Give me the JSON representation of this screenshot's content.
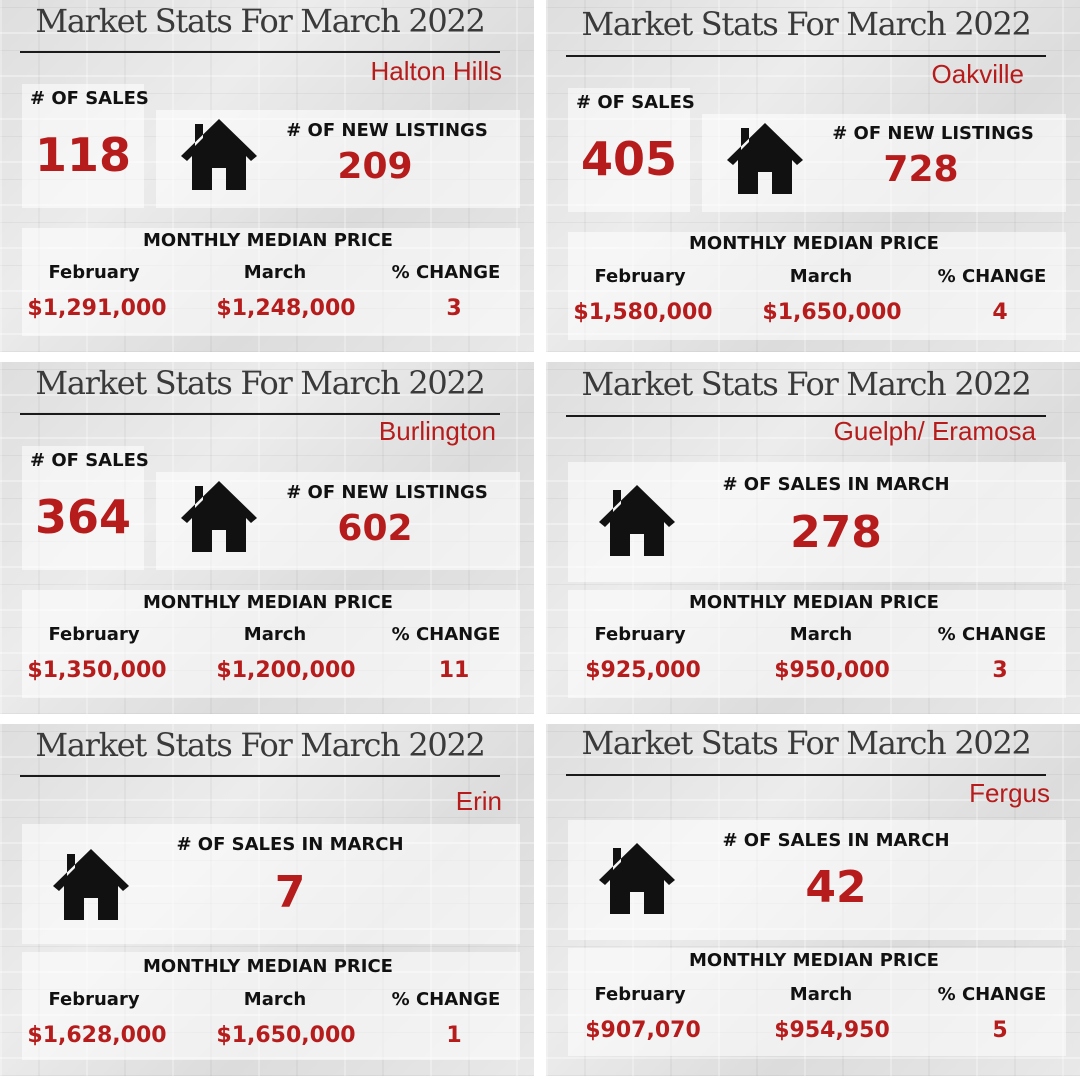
{
  "panels": [
    {
      "title": "Market Stats For March 2022",
      "location": "Halton Hills",
      "sales_label": "# OF SALES",
      "sales": "118",
      "listings_label": "# OF NEW LISTINGS",
      "listings": "209",
      "median_title": "MONTHLY MEDIAN PRICE",
      "feb_label": "February",
      "march_label": "March",
      "change_label": "% CHANGE",
      "feb_price": "$1,291,000",
      "march_price": "$1,248,000",
      "change": "3"
    },
    {
      "title": "Market Stats For March 2022",
      "location": "Oakville",
      "sales_label": "# OF SALES",
      "sales": "405",
      "listings_label": "# OF NEW LISTINGS",
      "listings": "728",
      "median_title": "MONTHLY MEDIAN PRICE",
      "feb_label": "February",
      "march_label": "March",
      "change_label": "% CHANGE",
      "feb_price": "$1,580,000",
      "march_price": "$1,650,000",
      "change": "4"
    },
    {
      "title": "Market Stats For March 2022",
      "location": "Burlington",
      "sales_label": "# OF SALES",
      "sales": "364",
      "listings_label": "# OF NEW LISTINGS",
      "listings": "602",
      "median_title": "MONTHLY MEDIAN PRICE",
      "feb_label": "February",
      "march_label": "March",
      "change_label": "% CHANGE",
      "feb_price": "$1,350,000",
      "march_price": "$1,200,000",
      "change": "11"
    },
    {
      "title": "Market Stats For March 2022",
      "location": "Guelph/ Eramosa",
      "march_sales_label": "# OF SALES IN MARCH",
      "march_sales": "278",
      "median_title": "MONTHLY MEDIAN PRICE",
      "feb_label": "February",
      "march_label": "March",
      "change_label": "% CHANGE",
      "feb_price": "$925,000",
      "march_price": "$950,000",
      "change": "3"
    },
    {
      "title": "Market Stats For March 2022",
      "location": "Erin",
      "march_sales_label": "# OF SALES IN MARCH",
      "march_sales": "7",
      "median_title": "MONTHLY MEDIAN PRICE",
      "feb_label": "February",
      "march_label": "March",
      "change_label": "% CHANGE",
      "feb_price": "$1,628,000",
      "march_price": "$1,650,000",
      "change": "1"
    },
    {
      "title": "Market Stats For March 2022",
      "location": "Fergus",
      "march_sales_label": "# OF SALES IN MARCH",
      "march_sales": "42",
      "median_title": "MONTHLY MEDIAN PRICE",
      "feb_label": "February",
      "march_label": "March",
      "change_label": "% CHANGE",
      "feb_price": "$907,070",
      "march_price": "$954,950",
      "change": "5"
    }
  ],
  "colors": {
    "accent": "#b71c1c",
    "text": "#111111",
    "title": "#3a3a3a"
  },
  "icon": "house-icon"
}
